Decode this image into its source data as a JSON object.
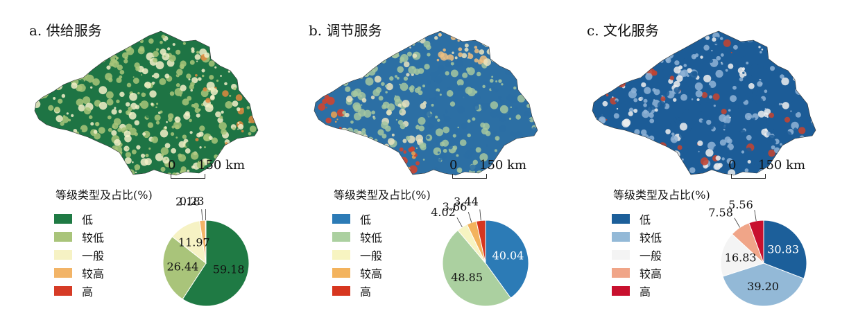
{
  "legend_title": "等级类型及占比(%)",
  "scalebar": {
    "zero": "0",
    "value": "150 km"
  },
  "panels": [
    {
      "title": "a. 供给服务",
      "legend": [
        {
          "label": "低",
          "color": "#1f7a44"
        },
        {
          "label": "较低",
          "color": "#a9c47a"
        },
        {
          "label": "一般",
          "color": "#f6f2c4"
        },
        {
          "label": "较高",
          "color": "#f2b467"
        },
        {
          "label": "高",
          "color": "#d63b26"
        }
      ],
      "map_colors": {
        "base": "#1e7444",
        "mid": "#a8c679",
        "light": "#f3f0c8",
        "accent": "#e08a3f"
      }
    },
    {
      "title": "b. 调节服务",
      "legend": [
        {
          "label": "低",
          "color": "#2c7bb6"
        },
        {
          "label": "较低",
          "color": "#abd0a0"
        },
        {
          "label": "一般",
          "color": "#f7f4c1"
        },
        {
          "label": "较高",
          "color": "#f3b35d"
        },
        {
          "label": "高",
          "color": "#d7361f"
        }
      ],
      "map_colors": {
        "base": "#2c6fa4",
        "mid": "#a5c7a0",
        "light": "#eae4c0",
        "accent": "#d8432a"
      }
    },
    {
      "title": "c. 文化服务",
      "legend": [
        {
          "label": "低",
          "color": "#1c5f9a"
        },
        {
          "label": "较低",
          "color": "#93b9d7"
        },
        {
          "label": "一般",
          "color": "#f4f4f4"
        },
        {
          "label": "较高",
          "color": "#f0a588"
        },
        {
          "label": "高",
          "color": "#c8102e"
        }
      ],
      "map_colors": {
        "base": "#1c5c97",
        "mid": "#8fb3d6",
        "light": "#eeeeee",
        "accent": "#c8432e"
      }
    }
  ],
  "chart_data": [
    {
      "type": "pie",
      "labels": [
        "低",
        "较低",
        "一般",
        "较高",
        "高"
      ],
      "values": [
        59.18,
        26.44,
        11.97,
        2.18,
        0.23
      ]
    },
    {
      "type": "pie",
      "labels": [
        "低",
        "较低",
        "一般",
        "较高",
        "高"
      ],
      "values": [
        40.04,
        48.85,
        4.02,
        3.66,
        3.44
      ]
    },
    {
      "type": "pie",
      "labels": [
        "低",
        "较低",
        "一般",
        "较高",
        "高"
      ],
      "values": [
        30.83,
        39.2,
        16.83,
        7.58,
        5.56
      ]
    }
  ]
}
